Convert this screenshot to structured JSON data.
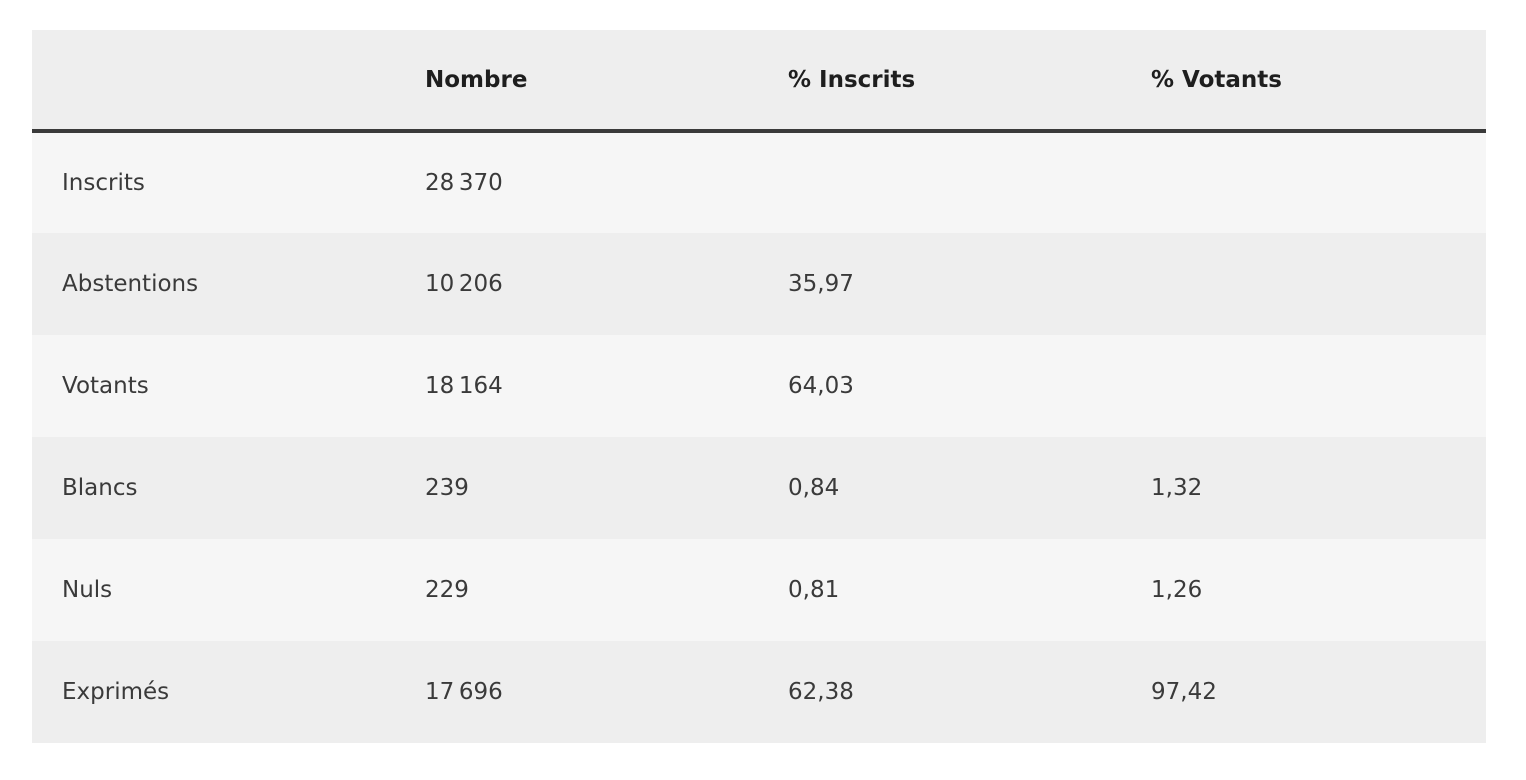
{
  "table": {
    "header": [
      null,
      "Nombre",
      "% Inscrits",
      "% Votants"
    ],
    "rows": [
      [
        "Inscrits",
        "28 370",
        null,
        null
      ],
      [
        "Abstentions",
        "10 206",
        "35,97",
        null
      ],
      [
        "Votants",
        "18 164",
        "64,03",
        null
      ],
      [
        "Blancs",
        "239",
        "0,84",
        "1,32"
      ],
      [
        "Nuls",
        "229",
        "0,81",
        "1,26"
      ],
      [
        "Exprimés",
        "17 696",
        "62,38",
        "97,42"
      ]
    ]
  }
}
